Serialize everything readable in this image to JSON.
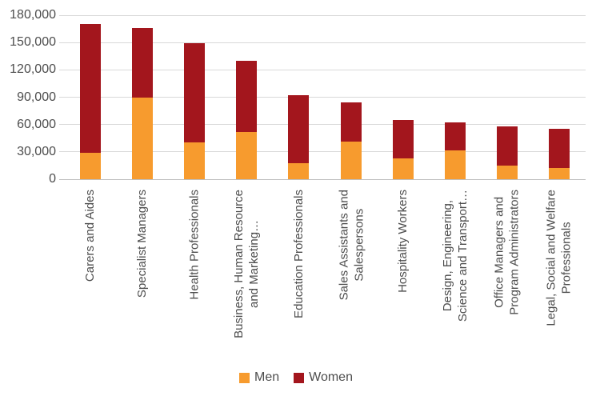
{
  "chart_data": {
    "type": "bar",
    "stacked": true,
    "title": "",
    "xlabel": "",
    "ylabel": "",
    "ylim": [
      0,
      180000
    ],
    "ytick_step": 30000,
    "ytick_labels": [
      "0",
      "30,000",
      "60,000",
      "90,000",
      "120,000",
      "150,000",
      "180,000"
    ],
    "grid": true,
    "legend_position": "bottom",
    "categories": [
      "Carers and Aides",
      "Specialist Managers",
      "Health Professionals",
      "Business, Human Resource\nand Marketing…",
      "Education Professionals",
      "Sales Assistants and\nSalespersons",
      "Hospitality Workers",
      "Design, Engineering,\nScience and Transport…",
      "Office Managers and\nProgram Administrators",
      "Legal, Social and Welfare\nProfessionals"
    ],
    "series": [
      {
        "name": "Men",
        "color": "#F79B2E",
        "values": [
          29000,
          90000,
          40000,
          52000,
          18000,
          41000,
          23000,
          32000,
          15000,
          12000
        ]
      },
      {
        "name": "Women",
        "color": "#A3161D",
        "values": [
          141000,
          76000,
          109000,
          78000,
          74000,
          43000,
          42000,
          30000,
          43000,
          43000
        ]
      }
    ],
    "totals": [
      170000,
      166000,
      149000,
      130000,
      92000,
      84000,
      65000,
      62000,
      58000,
      55000
    ]
  },
  "colors": {
    "men": "#F79B2E",
    "women": "#A3161D",
    "gridline": "#d9d9d9",
    "axis_line": "#bfbfbf",
    "axis_text": "#4d4d4d"
  }
}
